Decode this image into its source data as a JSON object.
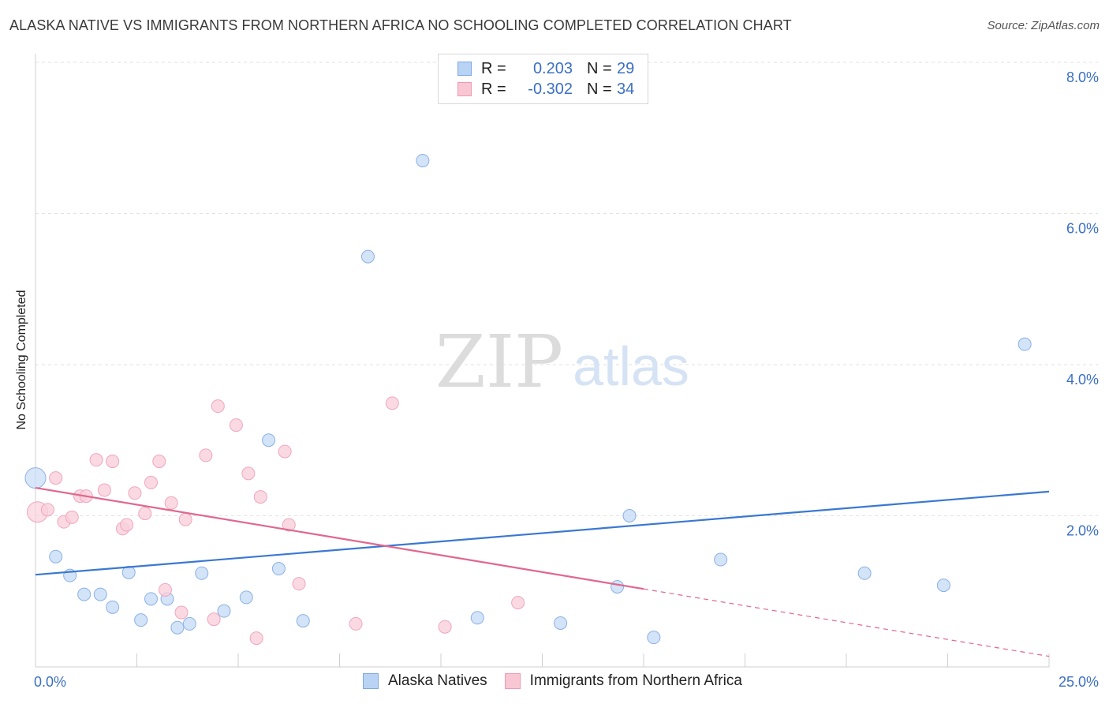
{
  "title": "ALASKA NATIVE VS IMMIGRANTS FROM NORTHERN AFRICA NO SCHOOLING COMPLETED CORRELATION CHART",
  "source": "Source: ZipAtlas.com",
  "watermark": {
    "zip": "ZIP",
    "atlas": "atlas"
  },
  "legend": {
    "r_label": "R =",
    "n_label": "N =",
    "rows": [
      {
        "r": "0.203",
        "n": "29",
        "fill": "#b9d3f5",
        "stroke": "#7fa8e0"
      },
      {
        "r": "-0.302",
        "n": "34",
        "fill": "#f9c6d4",
        "stroke": "#ee9ab2"
      }
    ]
  },
  "chart_data": {
    "type": "scatter",
    "ylabel": "No Schooling Completed",
    "xlim": [
      0,
      25
    ],
    "ylim": [
      0,
      8
    ],
    "x_tick_labels": [
      "0.0%",
      "25.0%"
    ],
    "y_ticks": [
      2,
      4,
      6,
      8
    ],
    "y_tick_labels": [
      "2.0%",
      "4.0%",
      "6.0%",
      "8.0%"
    ],
    "grid": true,
    "legend_position": "top-center",
    "series": [
      {
        "name": "Alaska Natives",
        "color": "#3a78d2",
        "fill": "#c8dcf6",
        "stroke": "#8bb1e4",
        "trend": {
          "x0": 0,
          "y0": 1.22,
          "x1": 25,
          "y1": 2.32,
          "dash_from": null
        },
        "points": [
          {
            "x": 0.0,
            "y": 2.5,
            "big": true
          },
          {
            "x": 0.5,
            "y": 1.46
          },
          {
            "x": 0.85,
            "y": 1.21
          },
          {
            "x": 1.2,
            "y": 0.96
          },
          {
            "x": 1.6,
            "y": 0.96
          },
          {
            "x": 1.9,
            "y": 0.79
          },
          {
            "x": 2.3,
            "y": 1.25
          },
          {
            "x": 2.6,
            "y": 0.62
          },
          {
            "x": 2.85,
            "y": 0.9
          },
          {
            "x": 3.25,
            "y": 0.9
          },
          {
            "x": 3.5,
            "y": 0.52
          },
          {
            "x": 3.8,
            "y": 0.57
          },
          {
            "x": 4.1,
            "y": 1.24
          },
          {
            "x": 4.65,
            "y": 0.74
          },
          {
            "x": 5.2,
            "y": 0.92
          },
          {
            "x": 5.75,
            "y": 3.0
          },
          {
            "x": 6.0,
            "y": 1.3
          },
          {
            "x": 6.6,
            "y": 0.61
          },
          {
            "x": 8.2,
            "y": 5.43
          },
          {
            "x": 9.55,
            "y": 6.7
          },
          {
            "x": 10.9,
            "y": 0.65
          },
          {
            "x": 12.95,
            "y": 0.58
          },
          {
            "x": 14.35,
            "y": 1.06
          },
          {
            "x": 14.65,
            "y": 2.0
          },
          {
            "x": 15.25,
            "y": 0.39
          },
          {
            "x": 16.9,
            "y": 1.42
          },
          {
            "x": 20.45,
            "y": 1.24
          },
          {
            "x": 22.4,
            "y": 1.08
          },
          {
            "x": 24.4,
            "y": 4.27
          }
        ]
      },
      {
        "name": "Immigrants from Northern Africa",
        "color": "#e0678e",
        "fill": "#fad0dc",
        "stroke": "#efa6bc",
        "trend": {
          "x0": 0,
          "y0": 2.37,
          "x1": 25,
          "y1": 0.14,
          "dash_from": 15.0
        },
        "points": [
          {
            "x": 0.05,
            "y": 2.05,
            "big": true
          },
          {
            "x": 0.3,
            "y": 2.08
          },
          {
            "x": 0.5,
            "y": 2.5
          },
          {
            "x": 0.7,
            "y": 1.92
          },
          {
            "x": 0.9,
            "y": 1.98
          },
          {
            "x": 1.1,
            "y": 2.26
          },
          {
            "x": 1.25,
            "y": 2.26
          },
          {
            "x": 1.5,
            "y": 2.74
          },
          {
            "x": 1.7,
            "y": 2.34
          },
          {
            "x": 1.9,
            "y": 2.72
          },
          {
            "x": 2.15,
            "y": 1.83
          },
          {
            "x": 2.25,
            "y": 1.88
          },
          {
            "x": 2.45,
            "y": 2.3
          },
          {
            "x": 2.7,
            "y": 2.03
          },
          {
            "x": 2.85,
            "y": 2.44
          },
          {
            "x": 3.05,
            "y": 2.72
          },
          {
            "x": 3.2,
            "y": 1.02
          },
          {
            "x": 3.35,
            "y": 2.17
          },
          {
            "x": 3.6,
            "y": 0.72
          },
          {
            "x": 3.7,
            "y": 1.95
          },
          {
            "x": 4.2,
            "y": 2.8
          },
          {
            "x": 4.4,
            "y": 0.63
          },
          {
            "x": 4.5,
            "y": 3.45
          },
          {
            "x": 4.95,
            "y": 3.2
          },
          {
            "x": 5.25,
            "y": 2.56
          },
          {
            "x": 5.45,
            "y": 0.38
          },
          {
            "x": 5.55,
            "y": 2.25
          },
          {
            "x": 6.15,
            "y": 2.85
          },
          {
            "x": 6.25,
            "y": 1.88
          },
          {
            "x": 6.5,
            "y": 1.1
          },
          {
            "x": 7.9,
            "y": 0.57
          },
          {
            "x": 8.8,
            "y": 3.49
          },
          {
            "x": 10.1,
            "y": 0.53
          },
          {
            "x": 11.9,
            "y": 0.85
          }
        ]
      }
    ]
  }
}
